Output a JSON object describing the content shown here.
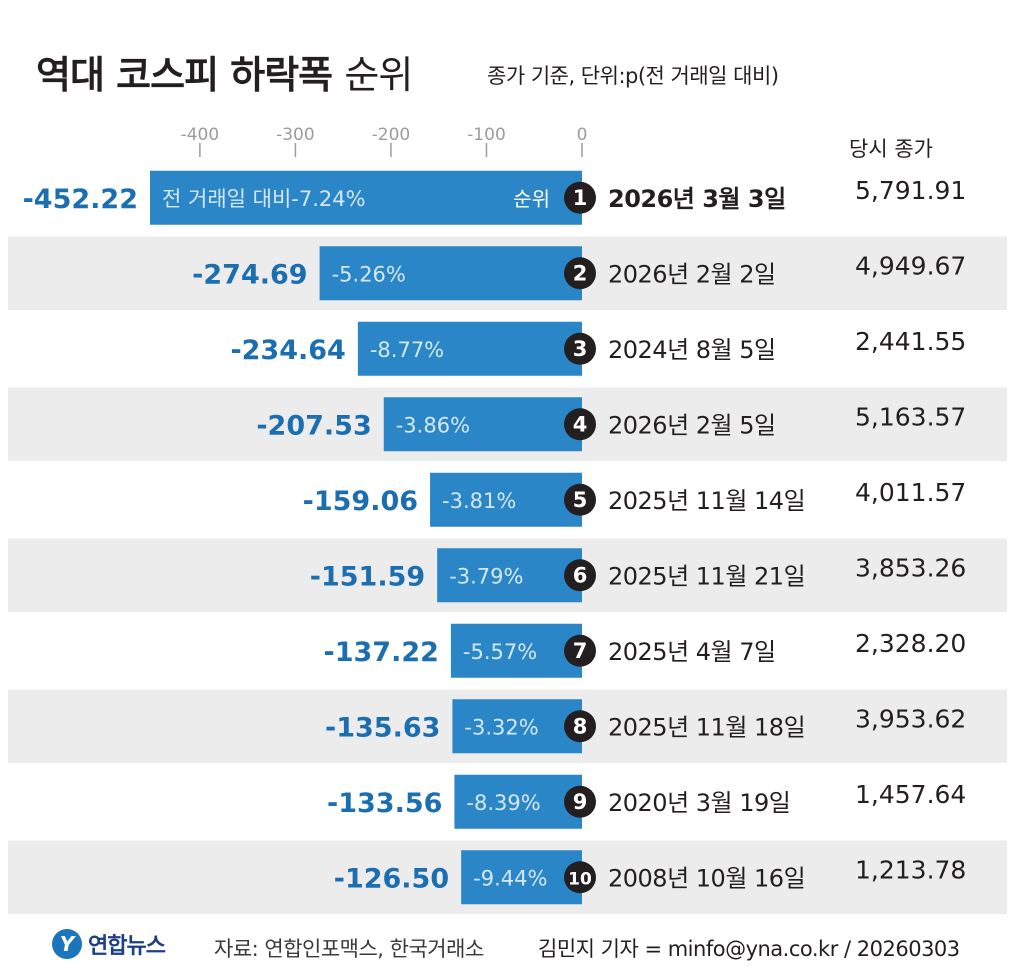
{
  "header": {
    "title": "역대 코스피 하락폭",
    "title_suffix": "순위",
    "unit": "종가 기준, 단위:p(전 거래일 대비)"
  },
  "footer": {
    "logo_mark": "Y",
    "logo_text": "연합뉴스",
    "source": "자료: 연합인포맥스, 한국거래소",
    "reporter": "김민지 기자 = minfo@yna.co.kr / 20260303"
  },
  "colors": {
    "bar": "#2b86c8",
    "value_text": "#1b6fb1",
    "pct_text": "#d4e8f7",
    "row_stripe": "#ececec",
    "badge": "#231f20",
    "axis": "#9c9c9c"
  },
  "chart_data": {
    "type": "bar",
    "orientation": "horizontal",
    "title": "역대 코스피 하락폭 순위",
    "xlim": [
      -452.22,
      0
    ],
    "axis_ticks": [
      -400,
      -300,
      -200,
      -100,
      0
    ],
    "axis_tick_labels": [
      "-400",
      "-300",
      "-200",
      "-100",
      "0"
    ],
    "bar_inner_label_first": "전 거래일 대비",
    "rank_header": "순위",
    "close_header": "당시 종가",
    "rows": [
      {
        "rank": "1",
        "value": -452.22,
        "value_label": "-452.22",
        "pct": "-7.24%",
        "date": "2026년 3월 3일",
        "close": "5,791.91"
      },
      {
        "rank": "2",
        "value": -274.69,
        "value_label": "-274.69",
        "pct": "-5.26%",
        "date": "2026년 2월 2일",
        "close": "4,949.67"
      },
      {
        "rank": "3",
        "value": -234.64,
        "value_label": "-234.64",
        "pct": "-8.77%",
        "date": "2024년 8월 5일",
        "close": "2,441.55"
      },
      {
        "rank": "4",
        "value": -207.53,
        "value_label": "-207.53",
        "pct": "-3.86%",
        "date": "2026년 2월 5일",
        "close": "5,163.57"
      },
      {
        "rank": "5",
        "value": -159.06,
        "value_label": "-159.06",
        "pct": "-3.81%",
        "date": "2025년 11월 14일",
        "close": "4,011.57"
      },
      {
        "rank": "6",
        "value": -151.59,
        "value_label": "-151.59",
        "pct": "-3.79%",
        "date": "2025년 11월 21일",
        "close": "3,853.26"
      },
      {
        "rank": "7",
        "value": -137.22,
        "value_label": "-137.22",
        "pct": "-5.57%",
        "date": "2025년 4월 7일",
        "close": "2,328.20"
      },
      {
        "rank": "8",
        "value": -135.63,
        "value_label": "-135.63",
        "pct": "-3.32%",
        "date": "2025년 11월 18일",
        "close": "3,953.62"
      },
      {
        "rank": "9",
        "value": -133.56,
        "value_label": "-133.56",
        "pct": "-8.39%",
        "date": "2020년 3월 19일",
        "close": "1,457.64"
      },
      {
        "rank": "10",
        "value": -126.5,
        "value_label": "-126.50",
        "pct": "-9.44%",
        "date": "2008년 10월 16일",
        "close": "1,213.78"
      }
    ]
  }
}
